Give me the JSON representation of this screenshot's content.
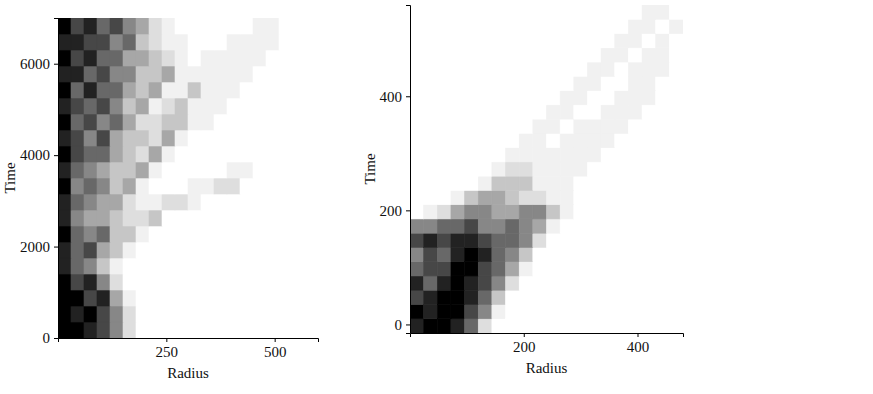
{
  "chart_data": [
    {
      "type": "heatmap",
      "x_label": "Radius",
      "y_label": "Time",
      "xlim": [
        0,
        600
      ],
      "ylim": [
        0,
        7000
      ],
      "xticks": [
        250,
        500
      ],
      "yticks": [
        0,
        2000,
        4000,
        6000
      ],
      "x": [
        15,
        45,
        75,
        105,
        135,
        165,
        195,
        225,
        255,
        285,
        315,
        345,
        375,
        405,
        435,
        465,
        495,
        525,
        555,
        585
      ],
      "y": [
        175,
        525,
        875,
        1225,
        1575,
        1925,
        2275,
        2625,
        2975,
        3325,
        3675,
        4025,
        4375,
        4725,
        5075,
        5425,
        5775,
        6125,
        6475,
        6825
      ],
      "cells": [
        [
          9,
          9,
          8,
          7,
          5,
          2,
          0,
          0,
          0,
          0,
          0,
          0,
          0,
          0,
          0,
          0,
          0,
          0,
          0,
          0
        ],
        [
          9,
          8,
          9,
          7,
          5,
          2,
          0,
          0,
          0,
          0,
          0,
          0,
          0,
          0,
          0,
          0,
          0,
          0,
          0,
          0
        ],
        [
          9,
          9,
          7,
          8,
          4,
          1,
          0,
          0,
          0,
          0,
          0,
          0,
          0,
          0,
          0,
          0,
          0,
          0,
          0,
          0
        ],
        [
          9,
          7,
          8,
          5,
          2,
          0,
          0,
          0,
          0,
          0,
          0,
          0,
          0,
          0,
          0,
          0,
          0,
          0,
          0,
          0
        ],
        [
          8,
          6,
          5,
          3,
          1,
          0,
          0,
          0,
          0,
          0,
          0,
          0,
          0,
          0,
          0,
          0,
          0,
          0,
          0,
          0
        ],
        [
          8,
          6,
          7,
          4,
          3,
          1,
          0,
          0,
          0,
          0,
          0,
          0,
          0,
          0,
          0,
          0,
          0,
          0,
          0,
          0
        ],
        [
          9,
          6,
          5,
          6,
          3,
          3,
          1,
          0,
          0,
          0,
          0,
          0,
          0,
          0,
          0,
          0,
          0,
          0,
          0,
          0
        ],
        [
          8,
          5,
          4,
          4,
          3,
          2,
          2,
          3,
          0,
          0,
          0,
          0,
          0,
          0,
          0,
          0,
          0,
          0,
          0,
          0
        ],
        [
          8,
          6,
          5,
          4,
          4,
          2,
          1,
          1,
          2,
          2,
          1,
          0,
          0,
          0,
          0,
          0,
          0,
          0,
          0,
          0
        ],
        [
          9,
          5,
          6,
          5,
          3,
          4,
          1,
          0,
          0,
          0,
          1,
          1,
          2,
          2,
          0,
          0,
          0,
          0,
          0,
          0
        ],
        [
          8,
          6,
          5,
          4,
          3,
          3,
          4,
          1,
          0,
          0,
          0,
          0,
          0,
          1,
          1,
          0,
          0,
          0,
          0,
          0
        ],
        [
          9,
          7,
          6,
          6,
          4,
          3,
          2,
          4,
          1,
          0,
          0,
          0,
          0,
          0,
          0,
          0,
          0,
          0,
          0,
          0
        ],
        [
          8,
          7,
          5,
          7,
          4,
          3,
          3,
          2,
          4,
          1,
          0,
          0,
          0,
          0,
          0,
          0,
          0,
          0,
          0,
          0
        ],
        [
          9,
          6,
          7,
          5,
          6,
          4,
          2,
          2,
          3,
          3,
          1,
          1,
          0,
          0,
          0,
          0,
          0,
          0,
          0,
          0
        ],
        [
          8,
          7,
          6,
          7,
          5,
          3,
          4,
          1,
          2,
          3,
          1,
          1,
          1,
          0,
          0,
          0,
          0,
          0,
          0,
          0
        ],
        [
          9,
          6,
          8,
          6,
          6,
          4,
          3,
          4,
          1,
          1,
          3,
          1,
          1,
          1,
          0,
          0,
          0,
          0,
          0,
          0
        ],
        [
          8,
          8,
          6,
          7,
          5,
          5,
          3,
          3,
          4,
          1,
          1,
          1,
          1,
          1,
          1,
          0,
          0,
          0,
          0,
          0
        ],
        [
          9,
          7,
          8,
          6,
          6,
          4,
          4,
          3,
          2,
          1,
          0,
          1,
          1,
          1,
          1,
          1,
          0,
          0,
          0,
          0
        ],
        [
          8,
          8,
          7,
          7,
          5,
          6,
          3,
          2,
          1,
          1,
          0,
          0,
          0,
          1,
          1,
          1,
          1,
          0,
          0,
          0
        ],
        [
          9,
          7,
          8,
          6,
          7,
          5,
          4,
          2,
          1,
          0,
          0,
          0,
          0,
          0,
          0,
          1,
          1,
          0,
          0,
          0
        ]
      ]
    },
    {
      "type": "heatmap",
      "x_label": "Radius",
      "y_label": "Time",
      "xlim": [
        0,
        480
      ],
      "ylim": [
        -15,
        560
      ],
      "xticks": [
        200,
        400
      ],
      "yticks": [
        0,
        200,
        400
      ],
      "x": [
        12,
        36,
        60,
        84,
        108,
        132,
        156,
        180,
        204,
        228,
        252,
        276,
        300,
        324,
        348,
        372,
        396,
        420,
        444,
        468
      ],
      "y": [
        -2.5,
        22.5,
        47.5,
        72.5,
        97.5,
        122.5,
        147.5,
        172.5,
        197.5,
        222.5,
        247.5,
        272.5,
        297.5,
        322.5,
        347.5,
        372.5,
        397.5,
        422.5,
        447.5,
        472.5,
        497.5,
        522.5,
        547.5
      ],
      "cells": [
        [
          8,
          9,
          9,
          8,
          6,
          2,
          0,
          0,
          0,
          0,
          0,
          0,
          0,
          0,
          0,
          0,
          0,
          0,
          0,
          0
        ],
        [
          9,
          8,
          9,
          9,
          7,
          5,
          1,
          0,
          0,
          0,
          0,
          0,
          0,
          0,
          0,
          0,
          0,
          0,
          0,
          0
        ],
        [
          7,
          8,
          9,
          9,
          8,
          6,
          3,
          0,
          0,
          0,
          0,
          0,
          0,
          0,
          0,
          0,
          0,
          0,
          0,
          0
        ],
        [
          8,
          6,
          8,
          9,
          8,
          7,
          5,
          2,
          0,
          0,
          0,
          0,
          0,
          0,
          0,
          0,
          0,
          0,
          0,
          0
        ],
        [
          6,
          7,
          7,
          9,
          9,
          7,
          6,
          4,
          1,
          0,
          0,
          0,
          0,
          0,
          0,
          0,
          0,
          0,
          0,
          0
        ],
        [
          5,
          7,
          6,
          8,
          9,
          8,
          6,
          5,
          3,
          0,
          0,
          0,
          0,
          0,
          0,
          0,
          0,
          0,
          0,
          0
        ],
        [
          7,
          8,
          7,
          8,
          8,
          7,
          6,
          6,
          5,
          2,
          0,
          0,
          0,
          0,
          0,
          0,
          0,
          0,
          0,
          0
        ],
        [
          5,
          5,
          6,
          6,
          7,
          5,
          5,
          6,
          5,
          4,
          1,
          0,
          0,
          0,
          0,
          0,
          0,
          0,
          0,
          0
        ],
        [
          0,
          1,
          2,
          4,
          5,
          5,
          4,
          4,
          5,
          5,
          3,
          1,
          0,
          0,
          0,
          0,
          0,
          0,
          0,
          0
        ],
        [
          0,
          0,
          0,
          1,
          3,
          4,
          4,
          3,
          2,
          2,
          1,
          1,
          0,
          0,
          0,
          0,
          0,
          0,
          0,
          0
        ],
        [
          0,
          0,
          0,
          0,
          0,
          1,
          3,
          3,
          3,
          1,
          1,
          1,
          0,
          0,
          0,
          0,
          0,
          0,
          0,
          0
        ],
        [
          0,
          0,
          0,
          0,
          0,
          0,
          1,
          2,
          2,
          1,
          1,
          1,
          1,
          0,
          0,
          0,
          0,
          0,
          0,
          0
        ],
        [
          0,
          0,
          0,
          0,
          0,
          0,
          0,
          1,
          1,
          1,
          1,
          1,
          1,
          1,
          0,
          0,
          0,
          0,
          0,
          0
        ],
        [
          0,
          0,
          0,
          0,
          0,
          0,
          0,
          0,
          1,
          1,
          0,
          1,
          1,
          1,
          1,
          0,
          0,
          0,
          0,
          0
        ],
        [
          0,
          0,
          0,
          0,
          0,
          0,
          0,
          0,
          0,
          1,
          1,
          0,
          1,
          1,
          1,
          1,
          0,
          0,
          0,
          0
        ],
        [
          0,
          0,
          0,
          0,
          0,
          0,
          0,
          0,
          0,
          0,
          1,
          1,
          0,
          0,
          1,
          1,
          1,
          0,
          0,
          0
        ],
        [
          0,
          0,
          0,
          0,
          0,
          0,
          0,
          0,
          0,
          0,
          0,
          1,
          1,
          0,
          0,
          1,
          1,
          1,
          0,
          0
        ],
        [
          0,
          0,
          0,
          0,
          0,
          0,
          0,
          0,
          0,
          0,
          0,
          0,
          1,
          1,
          0,
          0,
          1,
          1,
          0,
          0
        ],
        [
          0,
          0,
          0,
          0,
          0,
          0,
          0,
          0,
          0,
          0,
          0,
          0,
          0,
          1,
          1,
          0,
          1,
          1,
          1,
          0
        ],
        [
          0,
          0,
          0,
          0,
          0,
          0,
          0,
          0,
          0,
          0,
          0,
          0,
          0,
          0,
          1,
          1,
          0,
          1,
          1,
          0
        ],
        [
          0,
          0,
          0,
          0,
          0,
          0,
          0,
          0,
          0,
          0,
          0,
          0,
          0,
          0,
          0,
          1,
          1,
          0,
          1,
          0
        ],
        [
          0,
          0,
          0,
          0,
          0,
          0,
          0,
          0,
          0,
          0,
          0,
          0,
          0,
          0,
          0,
          0,
          1,
          1,
          0,
          1
        ],
        [
          0,
          0,
          0,
          0,
          0,
          0,
          0,
          0,
          0,
          0,
          0,
          0,
          0,
          0,
          0,
          0,
          0,
          1,
          1,
          0
        ]
      ]
    }
  ]
}
